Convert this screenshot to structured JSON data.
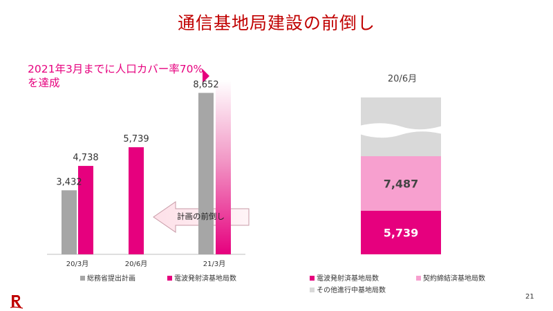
{
  "title": "通信基地局建設の前倒し",
  "annotation": "2021年3月までに人口カバー率70%を達成",
  "arrow_label": "計画の前倒し",
  "page_number": "21",
  "colors": {
    "accent": "#e6007e",
    "plan": "#a6a6a6",
    "contract": "#f7a0cf",
    "other": "#d9d9d9",
    "title": "#c00000"
  },
  "chart_data": [
    {
      "type": "bar",
      "categories": [
        "20/3月",
        "20/6月",
        "21/3月"
      ],
      "series": [
        {
          "name": "総務省提出計画",
          "values": [
            3432,
            null,
            8652
          ]
        },
        {
          "name": "電波発射済基地局数",
          "values": [
            4738,
            5739,
            null
          ]
        }
      ],
      "value_labels": [
        "3,432",
        "4,738",
        "5,739",
        "8,652"
      ],
      "ylim": [
        0,
        10000
      ],
      "legend": "bottom",
      "grid": false
    },
    {
      "type": "bar",
      "stacked": true,
      "categories": [
        "20/6月"
      ],
      "series": [
        {
          "name": "電波発射済基地局数",
          "values": [
            5739
          ]
        },
        {
          "name": "契約締結済基地局数",
          "values": [
            7487
          ]
        },
        {
          "name": "その他進行中基地局数",
          "values": [
            null
          ]
        }
      ],
      "value_labels": [
        "5,739",
        "7,487"
      ],
      "axis_break": true,
      "legend": "bottom",
      "grid": false
    }
  ]
}
